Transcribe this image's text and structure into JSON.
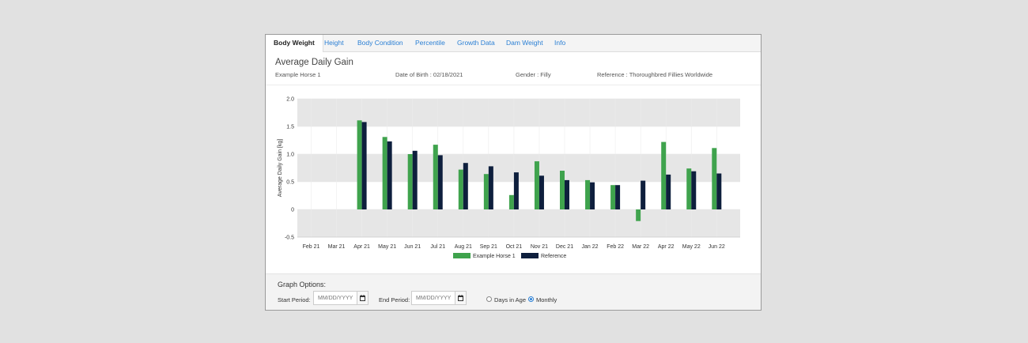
{
  "tabs": [
    {
      "label": "Body Weight",
      "active": true
    },
    {
      "label": "Height",
      "active": false
    },
    {
      "label": "Body Condition",
      "active": false
    },
    {
      "label": "Percentile",
      "active": false
    },
    {
      "label": "Growth Data",
      "active": false
    },
    {
      "label": "Dam Weight",
      "active": false
    },
    {
      "label": "Info",
      "active": false
    }
  ],
  "header": {
    "title": "Average Daily Gain",
    "horse_name": "Example Horse 1",
    "dob": "Date of Birth : 02/18/2021",
    "gender": "Gender : Filly",
    "reference": "Reference : Thoroughbred Fillies Worldwide"
  },
  "chart_data": {
    "type": "bar",
    "categories": [
      "Feb 21",
      "Mar 21",
      "Apr 21",
      "May 21",
      "Jun 21",
      "Jul 21",
      "Aug 21",
      "Sep 21",
      "Oct 21",
      "Nov 21",
      "Dec 21",
      "Jan 22",
      "Feb 22",
      "Mar 22",
      "Apr 22",
      "May 22",
      "Jun 22"
    ],
    "series": [
      {
        "name": "Example Horse 1",
        "color": "#3fa34d",
        "values": [
          null,
          null,
          1.61,
          1.31,
          1.0,
          1.17,
          0.72,
          0.64,
          0.26,
          0.87,
          0.7,
          0.53,
          0.44,
          -0.21,
          1.22,
          0.74,
          1.11
        ]
      },
      {
        "name": "Reference",
        "color": "#0e1f3d",
        "values": [
          null,
          null,
          1.58,
          1.23,
          1.06,
          0.98,
          0.84,
          0.78,
          0.67,
          0.61,
          0.53,
          0.49,
          0.44,
          0.52,
          0.63,
          0.69,
          0.65
        ]
      }
    ],
    "title": "",
    "xlabel": "",
    "ylabel": "Average Daily Gain [kg]",
    "ylim": [
      -0.5,
      2.0
    ],
    "yticks": [
      "2.0",
      "1.5",
      "1.0",
      "0.5",
      "0",
      "-0.5"
    ],
    "ytick_values": [
      2.0,
      1.5,
      1.0,
      0.5,
      0,
      -0.5
    ],
    "grid": true,
    "legend": "bottom-center"
  },
  "options": {
    "title": "Graph Options:",
    "start_label": "Start Period:",
    "end_label": "End Period:",
    "date_placeholder": "MM/DD/YYYY",
    "radio_days": "Days in Age",
    "radio_monthly": "Monthly",
    "selected": "Monthly"
  }
}
